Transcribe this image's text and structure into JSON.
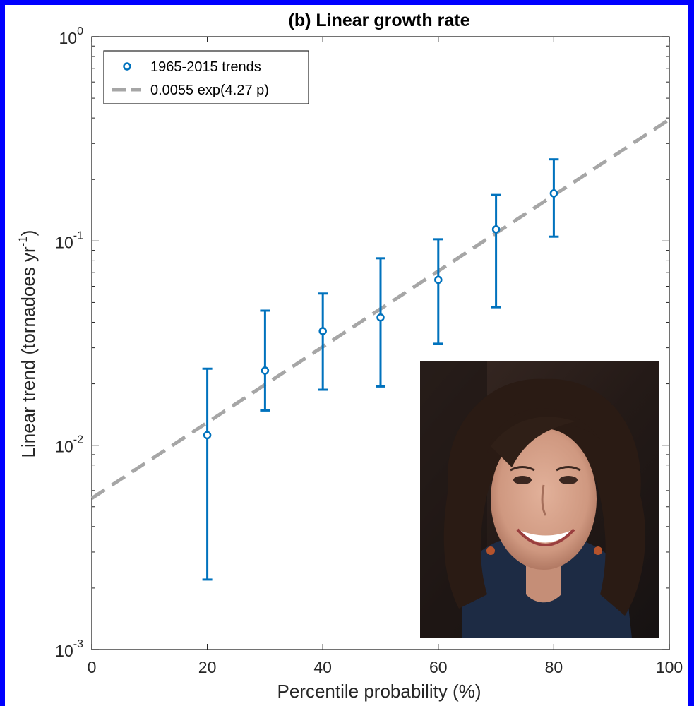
{
  "chart_data": {
    "type": "scatter",
    "title": "(b) Linear growth rate",
    "xlabel": "Percentile probability (%)",
    "ylabel": {
      "text": "Linear trend (tornadoes yr",
      "sup": "-1",
      "close": ")"
    },
    "xlim": [
      0,
      100
    ],
    "ylim": [
      0.001,
      1
    ],
    "yscale": "log",
    "xticks": [
      0,
      20,
      40,
      60,
      80,
      100
    ],
    "xtick_labels": [
      "0",
      "20",
      "40",
      "60",
      "80",
      "100"
    ],
    "yticks": [
      {
        "value": 0.001,
        "base": "10",
        "exp": "-3"
      },
      {
        "value": 0.01,
        "base": "10",
        "exp": "-2"
      },
      {
        "value": 0.1,
        "base": "10",
        "exp": "-1"
      },
      {
        "value": 1,
        "base": "10",
        "exp": "0"
      }
    ],
    "grid": false,
    "legend_position": "top-left",
    "series": [
      {
        "name": "1965-2015 trends",
        "kind": "errorbar",
        "color": "#0072bd",
        "x": [
          20,
          30,
          40,
          50,
          60,
          70,
          80
        ],
        "y": [
          0.0112,
          0.0232,
          0.0362,
          0.0422,
          0.0645,
          0.114,
          0.171
        ],
        "lower": [
          0.0022,
          0.0148,
          0.0187,
          0.0194,
          0.0314,
          0.0474,
          0.105
        ],
        "upper": [
          0.0237,
          0.0456,
          0.0553,
          0.0823,
          0.102,
          0.168,
          0.251
        ]
      },
      {
        "name": "0.0055 exp(4.27 p)",
        "kind": "fit",
        "color": "#a6a6a6",
        "a": 0.0055,
        "b": 4.27
      }
    ],
    "legend": [
      {
        "label": "1965-2015 trends"
      },
      {
        "label": "0.0055 exp(4.27 p)"
      }
    ]
  },
  "inset_photo": {
    "subject": "portrait-photo"
  }
}
